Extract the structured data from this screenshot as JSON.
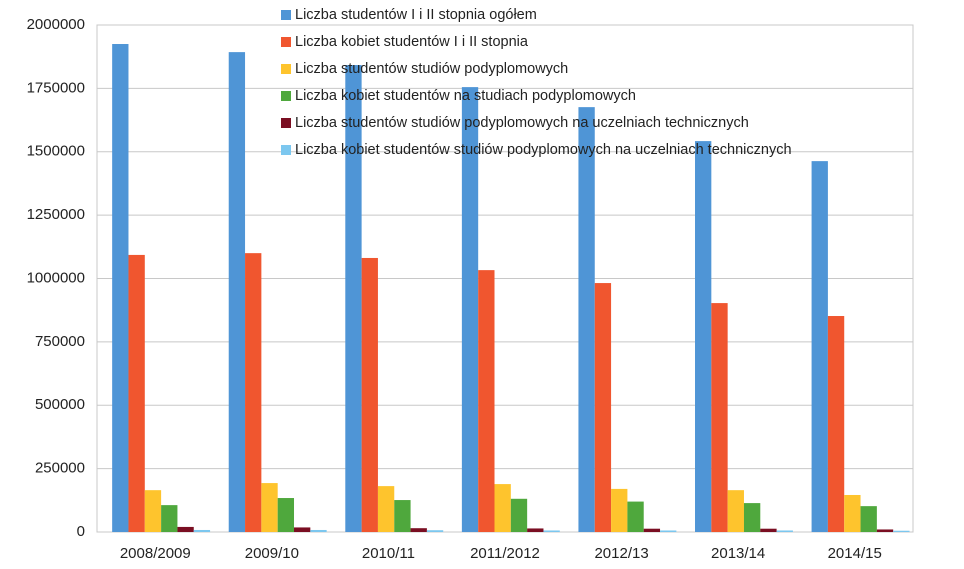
{
  "chart_data": {
    "type": "bar",
    "categories": [
      "2008/2009",
      "2009/10",
      "2010/11",
      "2011/2012",
      "2012/13",
      "2013/14",
      "2014/15"
    ],
    "series": [
      {
        "name": "Liczba studentów I i II stopnia ogółem",
        "color": "#4f95d6",
        "values": [
          1925000,
          1893000,
          1842000,
          1755000,
          1676000,
          1542000,
          1463000
        ]
      },
      {
        "name": "Liczba kobiet studentów I i II stopnia",
        "color": "#f0562f",
        "values": [
          1093000,
          1100000,
          1081000,
          1033000,
          982000,
          903000,
          852000
        ]
      },
      {
        "name": "Liczba studentów studiów podyplomowych",
        "color": "#fec42d",
        "values": [
          165000,
          193000,
          181000,
          189000,
          170000,
          165000,
          146000
        ]
      },
      {
        "name": "Liczba kobiet studentów na studiach podyplomowych",
        "color": "#4fa83d",
        "values": [
          106000,
          134000,
          126000,
          131000,
          120000,
          114000,
          102000
        ]
      },
      {
        "name": "Liczba studentów studiów podyplomowych na uczelniach technicznych",
        "color": "#7a0e22",
        "values": [
          20000,
          18000,
          15000,
          14000,
          13000,
          13000,
          10000
        ]
      },
      {
        "name": "Liczba kobiet studentów studiów podyplomowych na uczelniach technicznych",
        "color": "#7cc7ef",
        "values": [
          8000,
          8000,
          7000,
          6000,
          6000,
          6000,
          5000
        ]
      }
    ],
    "ylim": [
      0,
      2000000
    ],
    "yticks": [
      0,
      250000,
      500000,
      750000,
      1000000,
      1250000,
      1500000,
      1750000,
      2000000
    ],
    "grid": true
  }
}
